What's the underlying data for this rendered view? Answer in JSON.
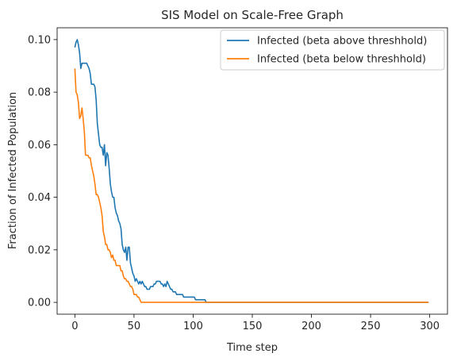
{
  "chart_data": {
    "type": "line",
    "title": "SIS Model on Scale-Free Graph",
    "xlabel": "Time step",
    "ylabel": "Fraction of Infected Population",
    "xlim": [
      -15,
      315
    ],
    "ylim": [
      -0.0045,
      0.1045
    ],
    "xticks": [
      0,
      50,
      100,
      150,
      200,
      250,
      300
    ],
    "yticks": [
      0.0,
      0.02,
      0.04,
      0.06,
      0.08,
      0.1
    ],
    "ytick_labels": [
      "0.00",
      "0.02",
      "0.04",
      "0.06",
      "0.08",
      "0.10"
    ],
    "grid": false,
    "legend_position": "upper right",
    "series": [
      {
        "name": "Infected (beta above threshhold)",
        "color": "#1f77b4",
        "x": [
          0,
          1,
          2,
          3,
          4,
          5,
          6,
          7,
          8,
          9,
          10,
          11,
          12,
          13,
          14,
          15,
          16,
          17,
          18,
          19,
          20,
          21,
          22,
          23,
          24,
          25,
          26,
          27,
          28,
          29,
          30,
          31,
          32,
          33,
          34,
          35,
          36,
          37,
          38,
          39,
          40,
          41,
          42,
          43,
          44,
          45,
          46,
          47,
          48,
          49,
          50,
          51,
          52,
          53,
          54,
          55,
          56,
          57,
          58,
          59,
          60,
          61,
          62,
          63,
          64,
          65,
          66,
          67,
          68,
          69,
          70,
          71,
          72,
          73,
          74,
          75,
          76,
          77,
          78,
          79,
          80,
          81,
          82,
          83,
          84,
          85,
          86,
          87,
          88,
          89,
          90,
          91,
          92,
          93,
          94,
          95,
          96,
          97,
          98,
          99,
          100,
          101,
          102,
          103,
          104,
          105,
          106,
          107,
          108,
          109,
          110,
          111,
          112,
          299
        ],
        "y": [
          0.097,
          0.099,
          0.1,
          0.098,
          0.095,
          0.089,
          0.091,
          0.091,
          0.091,
          0.091,
          0.091,
          0.09,
          0.089,
          0.087,
          0.083,
          0.083,
          0.083,
          0.082,
          0.077,
          0.068,
          0.064,
          0.06,
          0.059,
          0.059,
          0.056,
          0.06,
          0.052,
          0.057,
          0.056,
          0.051,
          0.045,
          0.042,
          0.04,
          0.04,
          0.036,
          0.034,
          0.033,
          0.031,
          0.03,
          0.028,
          0.022,
          0.02,
          0.019,
          0.021,
          0.016,
          0.021,
          0.021,
          0.015,
          0.013,
          0.011,
          0.01,
          0.008,
          0.009,
          0.008,
          0.007,
          0.008,
          0.007,
          0.008,
          0.007,
          0.006,
          0.006,
          0.005,
          0.005,
          0.005,
          0.006,
          0.006,
          0.006,
          0.007,
          0.007,
          0.008,
          0.008,
          0.008,
          0.008,
          0.007,
          0.007,
          0.006,
          0.007,
          0.006,
          0.008,
          0.007,
          0.006,
          0.005,
          0.005,
          0.004,
          0.004,
          0.004,
          0.003,
          0.003,
          0.003,
          0.003,
          0.003,
          0.003,
          0.002,
          0.002,
          0.002,
          0.002,
          0.002,
          0.002,
          0.002,
          0.002,
          0.002,
          0.002,
          0.001,
          0.001,
          0.001,
          0.001,
          0.001,
          0.001,
          0.001,
          0.001,
          0.001,
          0.0,
          0.0,
          0.0
        ]
      },
      {
        "name": "Infected (beta below threshhold)",
        "color": "#ff7f0e",
        "x": [
          0,
          1,
          2,
          3,
          4,
          5,
          6,
          7,
          8,
          9,
          10,
          11,
          12,
          13,
          14,
          15,
          16,
          17,
          18,
          19,
          20,
          21,
          22,
          23,
          24,
          25,
          26,
          27,
          28,
          29,
          30,
          31,
          32,
          33,
          34,
          35,
          36,
          37,
          38,
          39,
          40,
          41,
          42,
          43,
          44,
          45,
          46,
          47,
          48,
          49,
          50,
          51,
          52,
          53,
          54,
          55,
          56,
          57,
          58,
          299
        ],
        "y": [
          0.089,
          0.08,
          0.079,
          0.076,
          0.07,
          0.071,
          0.074,
          0.07,
          0.065,
          0.056,
          0.056,
          0.056,
          0.055,
          0.055,
          0.052,
          0.05,
          0.048,
          0.045,
          0.041,
          0.041,
          0.04,
          0.038,
          0.036,
          0.033,
          0.027,
          0.025,
          0.022,
          0.022,
          0.02,
          0.02,
          0.019,
          0.017,
          0.018,
          0.016,
          0.016,
          0.014,
          0.014,
          0.014,
          0.014,
          0.012,
          0.012,
          0.01,
          0.009,
          0.009,
          0.008,
          0.008,
          0.007,
          0.006,
          0.006,
          0.005,
          0.003,
          0.003,
          0.003,
          0.002,
          0.002,
          0.001,
          0.0,
          0.0,
          0.0,
          0.0
        ]
      }
    ]
  }
}
